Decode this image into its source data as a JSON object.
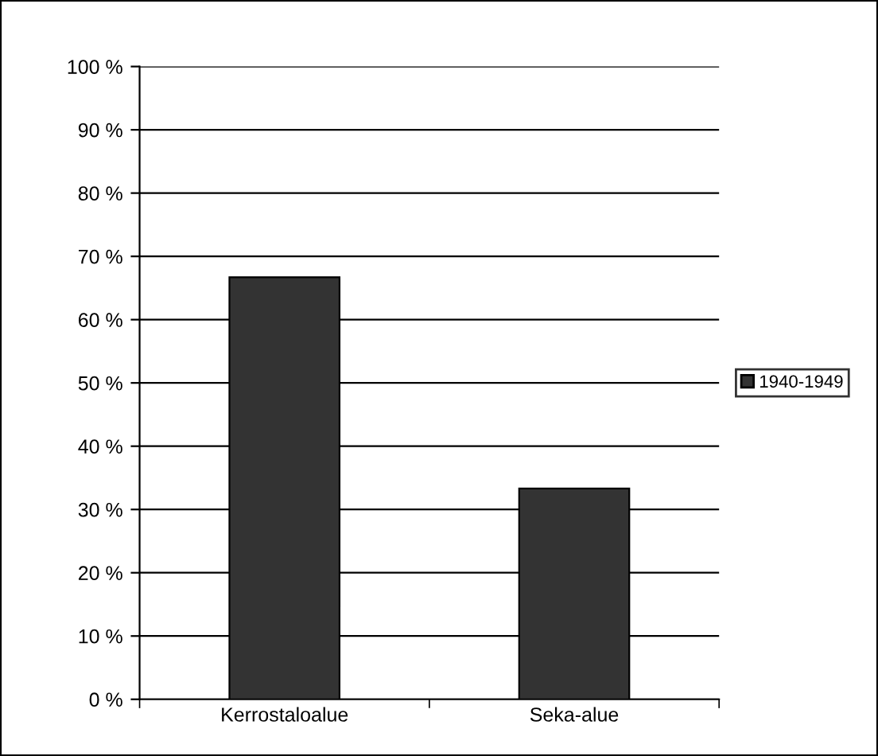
{
  "chart_data": {
    "type": "bar",
    "categories": [
      "Kerrostaloalue",
      "Seka-alue"
    ],
    "series": [
      {
        "name": "1940-1949",
        "color": "#333333",
        "values": [
          66.7,
          33.3
        ]
      }
    ],
    "ylim": [
      0,
      100
    ],
    "yticks": [
      {
        "value": 0,
        "label": "0 %"
      },
      {
        "value": 10,
        "label": "10 %"
      },
      {
        "value": 20,
        "label": "20 %"
      },
      {
        "value": 30,
        "label": "30 %"
      },
      {
        "value": 40,
        "label": "40 %"
      },
      {
        "value": 50,
        "label": "50 %"
      },
      {
        "value": 60,
        "label": "60 %"
      },
      {
        "value": 70,
        "label": "70 %"
      },
      {
        "value": 80,
        "label": "80 %"
      },
      {
        "value": 90,
        "label": "90 %"
      },
      {
        "value": 100,
        "label": "100 %"
      }
    ],
    "grid": "y",
    "legend": "right"
  }
}
